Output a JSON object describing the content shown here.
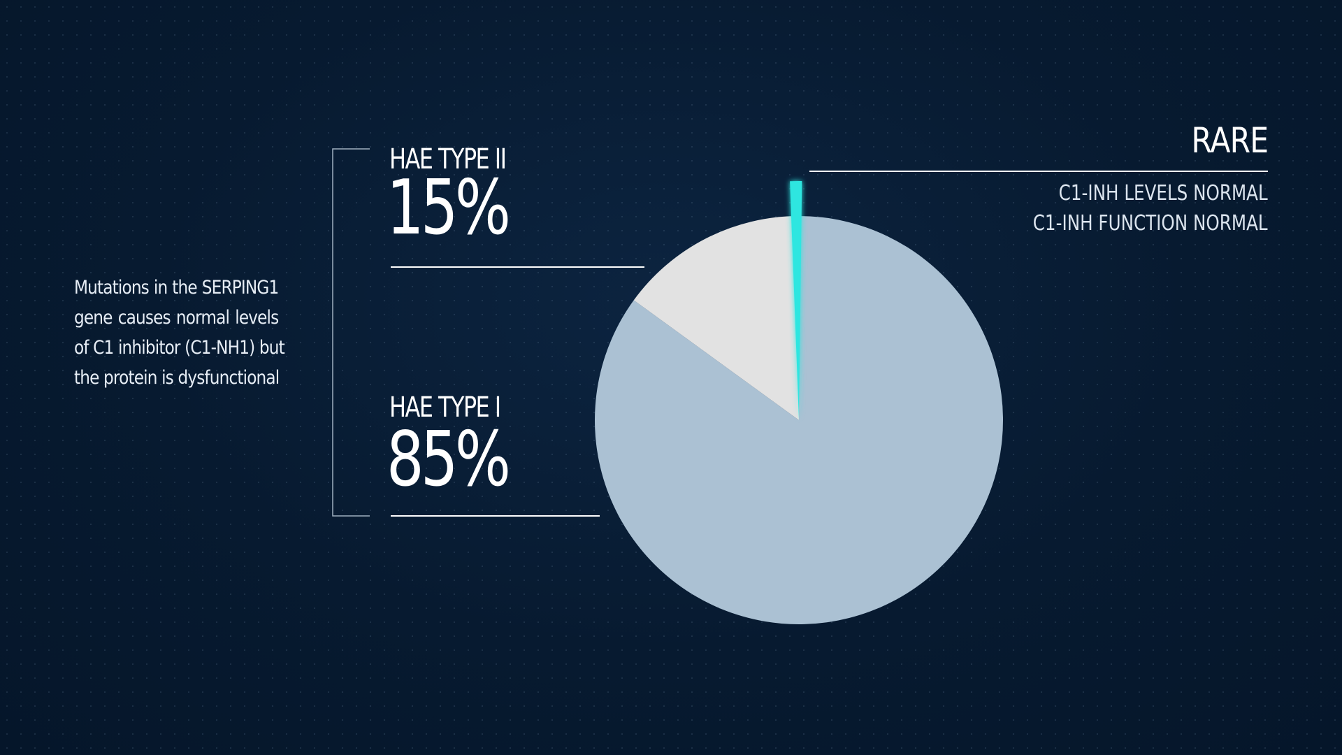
{
  "chart_data": {
    "type": "pie",
    "slices": [
      {
        "label": "HAE TYPE I",
        "value_label": "85%",
        "value": 85,
        "color": "#abc1d3"
      },
      {
        "label": "HAE TYPE II",
        "value_label": "15%",
        "value": 15,
        "color": "#e2e2e2"
      },
      {
        "label": "RARE",
        "value": 0.8,
        "color": "#2ee6e0"
      }
    ],
    "rare_notes": [
      "C1-INH LEVELS NORMAL",
      "C1-INH FUNCTION NORMAL"
    ],
    "description": [
      "Mutations in the SERPING1",
      "gene causes normal levels",
      "of C1 inhibitor (C1-NH1) but",
      "the protein is dysfunctional"
    ],
    "colors": {
      "background": "#071a30",
      "line": "#ffffff",
      "bracket": "#9fb0c0"
    }
  }
}
